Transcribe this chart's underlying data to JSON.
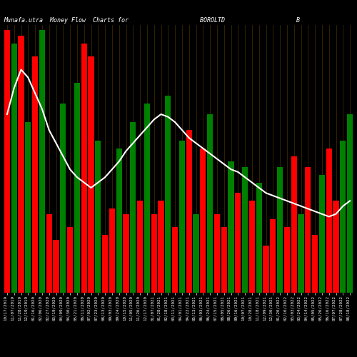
{
  "title": "Munafa.utra  Money Flow  Charts for                    BOROLTD                    B",
  "background_color": "#000000",
  "bar_colors": [
    "red",
    "green",
    "red",
    "green",
    "red",
    "green",
    "red",
    "red",
    "green",
    "red",
    "green",
    "red",
    "red",
    "green",
    "red",
    "red",
    "green",
    "red",
    "green",
    "red",
    "green",
    "red",
    "red",
    "green",
    "red",
    "green",
    "red",
    "green",
    "red",
    "green",
    "red",
    "red",
    "green",
    "red",
    "green",
    "red",
    "green",
    "red",
    "red",
    "green",
    "red",
    "red",
    "green",
    "red",
    "red",
    "green",
    "red",
    "red",
    "green",
    "green"
  ],
  "bar_heights": [
    100,
    95,
    98,
    65,
    90,
    100,
    30,
    20,
    72,
    25,
    80,
    95,
    90,
    58,
    22,
    32,
    55,
    30,
    65,
    35,
    72,
    30,
    35,
    75,
    25,
    58,
    62,
    30,
    55,
    68,
    30,
    25,
    50,
    38,
    48,
    35,
    42,
    18,
    28,
    48,
    25,
    52,
    30,
    48,
    22,
    45,
    55,
    35,
    58,
    68
  ],
  "line_values": [
    68,
    78,
    85,
    82,
    76,
    70,
    62,
    57,
    52,
    47,
    44,
    42,
    40,
    42,
    44,
    47,
    50,
    54,
    57,
    60,
    63,
    66,
    68,
    67,
    65,
    62,
    59,
    57,
    55,
    53,
    51,
    49,
    47,
    46,
    44,
    42,
    40,
    38,
    37,
    36,
    35,
    34,
    33,
    32,
    31,
    30,
    29,
    30,
    33,
    35
  ],
  "grid_color": "#5c3a00",
  "line_color": "#ffffff",
  "xlabel_color": "#ffffff",
  "tick_label_fontsize": 4.2,
  "x_labels": [
    "10/17/2019",
    "11/07/2019",
    "11/28/2019",
    "12/19/2019",
    "01/16/2020",
    "02/06/2020",
    "02/27/2020",
    "03/19/2020",
    "04/09/2020",
    "04/30/2020",
    "05/21/2020",
    "06/11/2020",
    "07/02/2020",
    "07/23/2020",
    "08/13/2020",
    "09/03/2020",
    "09/24/2020",
    "10/15/2020",
    "11/05/2020",
    "11/26/2020",
    "12/17/2020",
    "01/07/2021",
    "01/28/2021",
    "02/18/2021",
    "03/11/2021",
    "04/01/2021",
    "04/22/2021",
    "05/13/2021",
    "06/03/2021",
    "06/24/2021",
    "07/15/2021",
    "08/05/2021",
    "08/26/2021",
    "09/16/2021",
    "10/07/2021",
    "10/28/2021",
    "11/18/2021",
    "12/09/2021",
    "12/30/2021",
    "01/20/2022",
    "02/10/2022",
    "03/03/2022",
    "03/24/2022",
    "04/14/2022",
    "05/05/2022",
    "05/26/2022",
    "06/16/2022",
    "07/07/2022",
    "07/28/2022",
    "08/18/2022"
  ]
}
